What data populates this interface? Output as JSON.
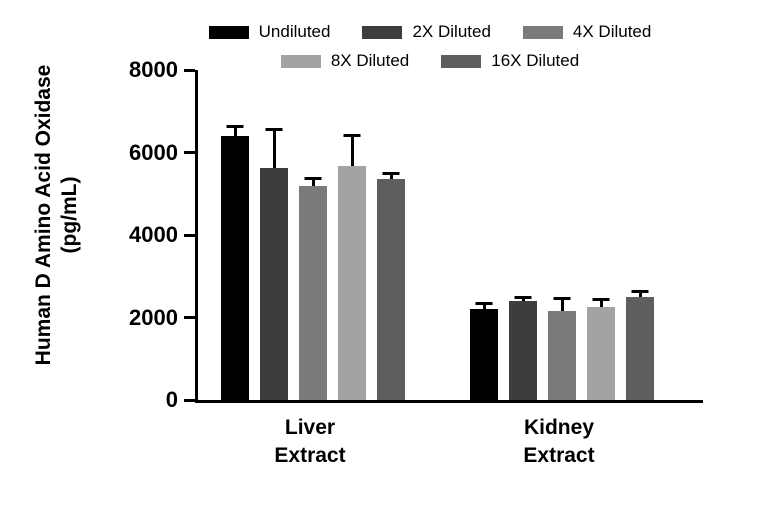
{
  "chart_data": {
    "type": "bar",
    "title": "",
    "ylabel_line1": "Human D Amino Acid Oxidase",
    "ylabel_line2": "(pg/mL)",
    "xlabel": "",
    "categories": [
      [
        "Liver",
        "Extract"
      ],
      [
        "Kidney",
        "Extract"
      ]
    ],
    "ylim": [
      0,
      8000
    ],
    "yticks": [
      0,
      2000,
      4000,
      6000,
      8000
    ],
    "grid": false,
    "legend_position": "top",
    "legend_rows": [
      [
        0,
        1,
        2
      ],
      [
        3,
        4
      ]
    ],
    "error_bar_color": "#000000",
    "series": [
      {
        "name": "Undiluted",
        "color": "#000000",
        "values": [
          6400,
          2200
        ],
        "errors": [
          200,
          100
        ]
      },
      {
        "name": "2X Diluted",
        "color": "#3d3d3d",
        "values": [
          5620,
          2400
        ],
        "errors": [
          900,
          60
        ]
      },
      {
        "name": "4X Diluted",
        "color": "#7a7a7a",
        "values": [
          5180,
          2150
        ],
        "errors": [
          150,
          280
        ]
      },
      {
        "name": "8X Diluted",
        "color": "#a3a3a3",
        "values": [
          5680,
          2250
        ],
        "errors": [
          700,
          140
        ]
      },
      {
        "name": "16X Diluted",
        "color": "#5e5e5e",
        "values": [
          5360,
          2500
        ],
        "errors": [
          90,
          90
        ]
      }
    ]
  }
}
